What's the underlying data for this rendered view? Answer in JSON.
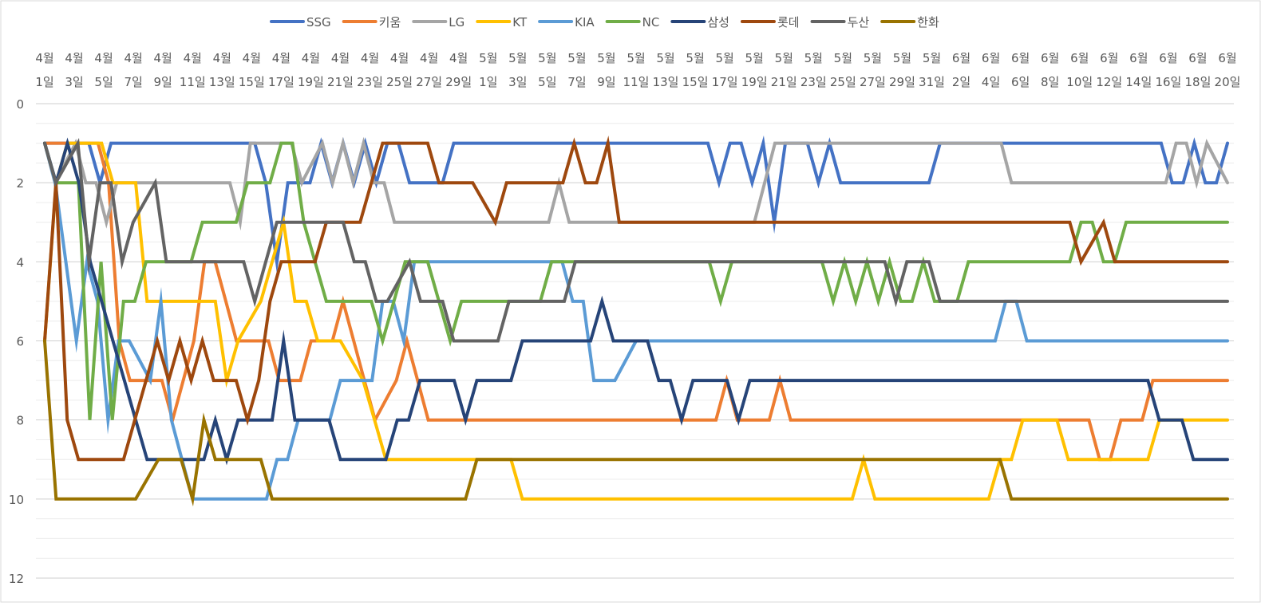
{
  "chart_data": {
    "type": "line",
    "title": "",
    "xlabel": "",
    "ylabel": "",
    "ylim": [
      0,
      12
    ],
    "y_reversed": true,
    "y_ticks": [
      0,
      2,
      4,
      6,
      8,
      10,
      12
    ],
    "grid": true,
    "legend_position": "top",
    "x_tick_labels": [
      {
        "month": "4월",
        "day": "1일"
      },
      {
        "month": "4월",
        "day": "3일"
      },
      {
        "month": "4월",
        "day": "5일"
      },
      {
        "month": "4월",
        "day": "7일"
      },
      {
        "month": "4월",
        "day": "9일"
      },
      {
        "month": "4월",
        "day": "11일"
      },
      {
        "month": "4월",
        "day": "13일"
      },
      {
        "month": "4월",
        "day": "15일"
      },
      {
        "month": "4월",
        "day": "17일"
      },
      {
        "month": "4월",
        "day": "19일"
      },
      {
        "month": "4월",
        "day": "21일"
      },
      {
        "month": "4월",
        "day": "23일"
      },
      {
        "month": "4월",
        "day": "25일"
      },
      {
        "month": "4월",
        "day": "27일"
      },
      {
        "month": "4월",
        "day": "29일"
      },
      {
        "month": "5월",
        "day": "1일"
      },
      {
        "month": "5월",
        "day": "3일"
      },
      {
        "month": "5월",
        "day": "5일"
      },
      {
        "month": "5월",
        "day": "7일"
      },
      {
        "month": "5월",
        "day": "9일"
      },
      {
        "month": "5월",
        "day": "11일"
      },
      {
        "month": "5월",
        "day": "13일"
      },
      {
        "month": "5월",
        "day": "15일"
      },
      {
        "month": "5월",
        "day": "17일"
      },
      {
        "month": "5월",
        "day": "19일"
      },
      {
        "month": "5월",
        "day": "21일"
      },
      {
        "month": "5월",
        "day": "23일"
      },
      {
        "month": "5월",
        "day": "25일"
      },
      {
        "month": "5월",
        "day": "27일"
      },
      {
        "month": "5월",
        "day": "29일"
      },
      {
        "month": "5월",
        "day": "31일"
      },
      {
        "month": "6월",
        "day": "2일"
      },
      {
        "month": "6월",
        "day": "4일"
      },
      {
        "month": "6월",
        "day": "6일"
      },
      {
        "month": "6월",
        "day": "8일"
      },
      {
        "month": "6월",
        "day": "10일"
      },
      {
        "month": "6월",
        "day": "12일"
      },
      {
        "month": "6월",
        "day": "14일"
      },
      {
        "month": "6월",
        "day": "16일"
      },
      {
        "month": "6월",
        "day": "18일"
      },
      {
        "month": "6월",
        "day": "20일"
      }
    ],
    "series": [
      {
        "name": "SSG",
        "color": "#4472C4",
        "values": [
          1,
          1,
          1,
          1,
          1,
          2,
          1,
          1,
          1,
          1,
          1,
          1,
          1,
          1,
          1,
          1,
          1,
          1,
          1,
          1,
          2,
          4,
          2,
          2,
          2,
          1,
          2,
          1,
          2,
          1,
          2,
          1,
          1,
          2,
          2,
          2,
          2,
          1,
          1,
          1,
          1,
          1,
          1,
          1,
          1,
          1,
          1,
          1,
          1,
          1,
          1,
          1,
          1,
          1,
          1,
          1,
          1,
          1,
          1,
          1,
          1,
          2,
          1,
          1,
          2,
          1,
          3,
          1,
          1,
          1,
          2,
          1,
          2,
          2,
          2,
          2,
          2,
          2,
          2,
          2,
          2,
          1,
          1,
          1,
          1,
          1,
          1,
          1,
          1,
          1,
          1,
          1,
          1,
          1,
          1,
          1,
          1,
          1,
          1,
          1,
          1,
          1,
          2,
          2,
          1,
          2,
          2,
          1
        ]
      },
      {
        "name": "키움",
        "color": "#ED7D31",
        "values": [
          1,
          1,
          1,
          1,
          1,
          1,
          2,
          6,
          7,
          7,
          7,
          7,
          8,
          7,
          6,
          4,
          4,
          5,
          6,
          6,
          6,
          6,
          7,
          7,
          7,
          6,
          6,
          6,
          5,
          6,
          7,
          8,
          7.5,
          7,
          6,
          7,
          8,
          8,
          8,
          8,
          8,
          8,
          8,
          8,
          8,
          8,
          8,
          8,
          8,
          8,
          8,
          8,
          8,
          8,
          8,
          8,
          8,
          8,
          8,
          8,
          8,
          8,
          8,
          8,
          7,
          8,
          8,
          8,
          8,
          7,
          8,
          8,
          8,
          8,
          8,
          8,
          8,
          8,
          8,
          8,
          8,
          8,
          8,
          8,
          8,
          8,
          8,
          8,
          8,
          8,
          8,
          8,
          8,
          8,
          8,
          8,
          8,
          8,
          8,
          9,
          9,
          8,
          8,
          8,
          7,
          7,
          7,
          7,
          7,
          7,
          7,
          7
        ]
      },
      {
        "name": "LG",
        "color": "#A5A5A5",
        "values": [
          1,
          2,
          1.5,
          1,
          2,
          2,
          3,
          2,
          2,
          2,
          2,
          2,
          2,
          2,
          2,
          2,
          2,
          2,
          2,
          3,
          1,
          1,
          1,
          1,
          1,
          2,
          1.5,
          1,
          2,
          1,
          2,
          1,
          2,
          2,
          3,
          3,
          3,
          3,
          3,
          3,
          3,
          3,
          3,
          3,
          3,
          3,
          3,
          3,
          3,
          3,
          2,
          3,
          3,
          3,
          3,
          3,
          3,
          3,
          3,
          3,
          3,
          3,
          3,
          3,
          3,
          3,
          3,
          3,
          3,
          3,
          2,
          1,
          1,
          1,
          1,
          1,
          1,
          1,
          1,
          1,
          1,
          1,
          1,
          1,
          1,
          1,
          1,
          1,
          1,
          1,
          1,
          1,
          1,
          1,
          2,
          2,
          2,
          2,
          2,
          2,
          2,
          2,
          2,
          2,
          2,
          2,
          2,
          2,
          2,
          2,
          1,
          1,
          2,
          1,
          1.5,
          2
        ]
      },
      {
        "name": "KT",
        "color": "#FFC000",
        "values": [
          6,
          2,
          1,
          1,
          1,
          1,
          2,
          2,
          2,
          5,
          5,
          5,
          5,
          5,
          5,
          5,
          7,
          6,
          5.5,
          5,
          4,
          3,
          5,
          5,
          6,
          6,
          6,
          6.5,
          7,
          8,
          9,
          9,
          9,
          9,
          9,
          9,
          9,
          9,
          9,
          9,
          9,
          9,
          10,
          10,
          10,
          10,
          10,
          10,
          10,
          10,
          10,
          10,
          10,
          10,
          10,
          10,
          10,
          10,
          10,
          10,
          10,
          10,
          10,
          10,
          10,
          10,
          10,
          10,
          10,
          10,
          10,
          10,
          9,
          10,
          10,
          10,
          10,
          10,
          10,
          10,
          10,
          10,
          10,
          10,
          9,
          9,
          8,
          8,
          8,
          8,
          9,
          9,
          9,
          9,
          9,
          9,
          9,
          9,
          8,
          8,
          8,
          8,
          8,
          8,
          8
        ]
      },
      {
        "name": "KIA",
        "color": "#5B9BD5",
        "values": [
          1,
          2,
          4,
          6,
          4,
          5,
          8,
          6,
          6,
          6.5,
          7,
          5,
          8,
          9,
          10,
          10,
          10,
          10,
          10,
          10,
          10,
          10,
          9,
          9,
          8,
          8,
          8,
          8,
          7,
          7,
          7,
          7,
          5,
          5,
          6,
          4,
          4,
          4,
          4,
          4,
          4,
          4,
          4,
          4,
          4,
          4,
          4,
          4,
          4,
          4,
          5,
          5,
          7,
          7,
          7,
          6.5,
          6,
          6,
          6,
          6,
          6,
          6,
          6,
          6,
          6,
          6,
          6,
          6,
          6,
          6,
          6,
          6,
          6,
          6,
          6,
          6,
          6,
          6,
          6,
          6,
          6,
          6,
          6,
          6,
          6,
          6,
          6,
          6,
          6,
          6,
          6,
          5,
          5,
          6,
          6,
          6,
          6,
          6,
          6,
          6,
          6,
          6,
          6,
          6,
          6,
          6,
          6,
          6,
          6,
          6,
          6,
          6,
          6
        ]
      },
      {
        "name": "NC",
        "color": "#70AD47",
        "values": [
          1,
          2,
          2,
          2,
          8,
          4,
          8,
          5,
          5,
          4,
          4,
          4,
          4,
          4,
          3,
          3,
          3,
          3,
          2,
          2,
          2,
          1,
          1,
          3,
          4,
          5,
          5,
          5,
          5,
          5,
          6,
          5,
          4,
          4,
          4,
          5,
          6,
          5,
          5,
          5,
          5,
          5,
          5,
          5,
          5,
          4,
          4,
          4,
          4,
          4,
          4,
          4,
          4,
          4,
          4,
          4,
          4,
          4,
          4,
          4,
          5,
          4,
          4,
          4,
          4,
          4,
          4,
          4,
          4,
          4,
          5,
          4,
          5,
          4,
          5,
          4,
          5,
          5,
          4,
          5,
          5,
          5,
          4,
          4,
          4,
          4,
          4,
          4,
          4,
          4,
          4,
          4,
          3,
          3,
          4,
          4,
          3,
          3,
          3,
          3,
          3,
          3,
          3,
          3,
          3,
          3
        ]
      },
      {
        "name": "삼성",
        "color": "#264478",
        "values": [
          1,
          2,
          1,
          2,
          4,
          5,
          6,
          7,
          8,
          9,
          9,
          9,
          9,
          9,
          9,
          8,
          9,
          8,
          8,
          8,
          8,
          6,
          8,
          8,
          8,
          8,
          9,
          9,
          9,
          9,
          9,
          8,
          8,
          7,
          7,
          7,
          7,
          8,
          7,
          7,
          7,
          7,
          6,
          6,
          6,
          6,
          6,
          6,
          6,
          5,
          6,
          6,
          6,
          6,
          7,
          7,
          8,
          7,
          7,
          7,
          7,
          8,
          7,
          7,
          7,
          7,
          7,
          7,
          7,
          7,
          7,
          7,
          7,
          7,
          7,
          7,
          7,
          7,
          7,
          7,
          7,
          7,
          7,
          7,
          7,
          7,
          7,
          7,
          7,
          7,
          7,
          7,
          7,
          7,
          7,
          7,
          7,
          7,
          8,
          8,
          8,
          9,
          9,
          9,
          9
        ]
      },
      {
        "name": "롯데",
        "color": "#9E480E",
        "values": [
          6,
          2,
          8,
          9,
          9,
          9,
          9,
          9,
          8,
          7,
          6,
          7,
          6,
          7,
          6,
          7,
          7,
          7,
          8,
          7,
          5,
          4,
          4,
          4,
          4,
          3,
          3,
          3,
          3,
          2,
          1,
          1,
          1,
          1,
          1,
          2,
          2,
          2,
          2,
          2.5,
          3,
          2,
          2,
          2,
          2,
          2,
          2,
          1,
          2,
          2,
          1,
          3,
          3,
          3,
          3,
          3,
          3,
          3,
          3,
          3,
          3,
          3,
          3,
          3,
          3,
          3,
          3,
          3,
          3,
          3,
          3,
          3,
          3,
          3,
          3,
          3,
          3,
          3,
          3,
          3,
          3,
          3,
          3,
          3,
          3,
          3,
          3,
          3,
          3,
          3,
          3,
          3,
          4,
          3.5,
          3,
          4,
          4,
          4,
          4,
          4,
          4,
          4,
          4,
          4,
          4,
          4
        ]
      },
      {
        "name": "두산",
        "color": "#636363",
        "values": [
          1,
          2,
          1.5,
          1,
          4,
          2,
          2,
          4,
          3,
          2.5,
          2,
          4,
          4,
          4,
          4,
          4,
          4,
          4,
          4,
          5,
          4,
          3,
          3,
          3,
          3,
          3,
          3,
          3,
          4,
          4,
          5,
          5,
          4.5,
          4,
          5,
          5,
          5,
          6,
          6,
          6,
          6,
          6,
          5,
          5,
          5,
          5,
          5,
          5,
          4,
          4,
          4,
          4,
          4,
          4,
          4,
          4,
          4,
          4,
          4,
          4,
          4,
          4,
          4,
          4,
          4,
          4,
          4,
          4,
          4,
          4,
          4,
          4,
          4,
          4,
          4,
          4,
          4,
          5,
          4,
          4,
          4,
          5,
          5,
          5,
          5,
          5,
          5,
          5,
          5,
          5,
          5,
          5,
          5,
          5,
          5,
          5,
          5,
          5,
          5,
          5,
          5,
          5,
          5,
          5,
          5,
          5,
          5,
          5
        ]
      },
      {
        "name": "한화",
        "color": "#997300",
        "values": [
          6,
          10,
          10,
          10,
          10,
          10,
          10,
          10,
          10,
          9.5,
          9,
          9,
          9,
          10,
          8,
          9,
          9,
          9,
          9,
          9,
          10,
          10,
          10,
          10,
          10,
          10,
          10,
          10,
          10,
          10,
          10,
          10,
          10,
          10,
          10,
          10,
          10,
          10,
          9,
          9,
          9,
          9,
          9,
          9,
          9,
          9,
          9,
          9,
          9,
          9,
          9,
          9,
          9,
          9,
          9,
          9,
          9,
          9,
          9,
          9,
          9,
          9,
          9,
          9,
          9,
          9,
          9,
          9,
          9,
          9,
          9,
          9,
          9,
          9,
          9,
          9,
          9,
          9,
          9,
          9,
          9,
          9,
          9,
          9,
          9,
          10,
          10,
          10,
          10,
          10,
          10,
          10,
          10,
          10,
          10,
          10,
          10,
          10,
          10,
          10,
          10,
          10,
          10,
          10,
          10
        ]
      }
    ]
  }
}
